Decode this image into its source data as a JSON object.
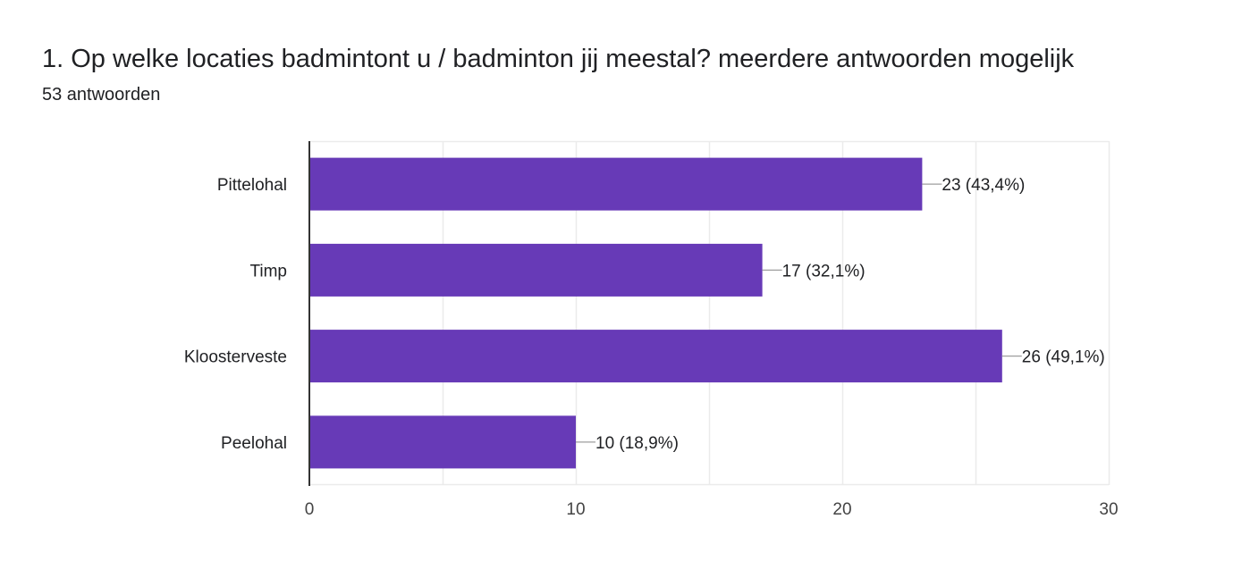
{
  "header": {
    "title": "1. Op welke locaties badmintont u / badminton jij meestal? meerdere antwoorden mogelijk",
    "response_count": "53 antwoorden"
  },
  "chart_data": {
    "type": "bar",
    "orientation": "horizontal",
    "categories": [
      "Pittelohal",
      "Timp",
      "Kloosterveste",
      "Peelohal"
    ],
    "values": [
      23,
      17,
      26,
      10
    ],
    "data_labels": [
      "23 (43,4%)",
      "17 (32,1%)",
      "26 (49,1%)",
      "10 (18,9%)"
    ],
    "xlim": [
      0,
      30
    ],
    "x_ticks": [
      0,
      10,
      20,
      30
    ],
    "grid": true,
    "bar_color": "#673ab7",
    "grid_color": "#ebebeb",
    "axis_color": "#333333",
    "leader_color": "#9e9e9e",
    "label_color": "#202124"
  }
}
